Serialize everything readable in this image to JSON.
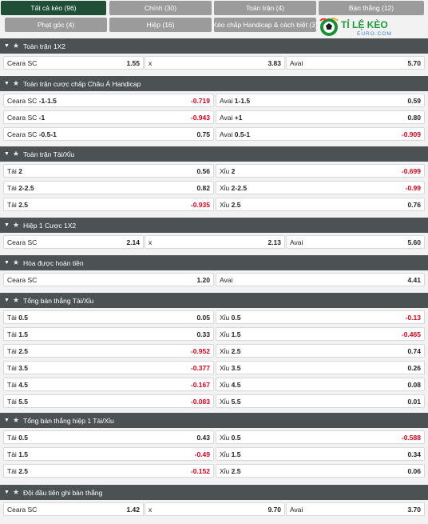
{
  "tabs": [
    {
      "label": "Tất cả kèo (96)",
      "active": true
    },
    {
      "label": "Chính (30)"
    },
    {
      "label": "Toàn trận (4)"
    },
    {
      "label": "Bàn thắng (12)"
    },
    {
      "label": "Phạt góc (4)"
    },
    {
      "label": "Hiệp (16)"
    },
    {
      "label": "Kèo chấp Handicap & cách biệt (3)"
    }
  ],
  "logo": {
    "text": "TỈ LỆ KÈO",
    "sub": "EURO.COM"
  },
  "sections": [
    {
      "title": "Toàn trận 1X2",
      "layout": "three",
      "rows": [
        [
          {
            "name": "Ceara SC",
            "odd": "1.55"
          },
          {
            "name": "x",
            "odd": "3.83"
          },
          {
            "name": "Avai",
            "odd": "5.70"
          }
        ]
      ]
    },
    {
      "title": "Toàn trận cược chấp Châu Á Handicap",
      "layout": "two",
      "rows": [
        [
          {
            "name": "Ceara SC",
            "line": "-1-1.5",
            "odd": "-0.719"
          },
          {
            "name": "Avai",
            "line": "1-1.5",
            "odd": "0.59"
          }
        ],
        [
          {
            "name": "Ceara SC",
            "line": "-1",
            "odd": "-0.943"
          },
          {
            "name": "Avai",
            "line": "+1",
            "odd": "0.80"
          }
        ],
        [
          {
            "name": "Ceara SC",
            "line": "-0.5-1",
            "odd": "0.75"
          },
          {
            "name": "Avai",
            "line": "0.5-1",
            "odd": "-0.909"
          }
        ]
      ]
    },
    {
      "title": "Toàn trận Tài/Xỉu",
      "layout": "two",
      "rows": [
        [
          {
            "name": "Tài",
            "line": "2",
            "odd": "0.56"
          },
          {
            "name": "Xỉu",
            "line": "2",
            "odd": "-0.699"
          }
        ],
        [
          {
            "name": "Tài",
            "line": "2-2.5",
            "odd": "0.82"
          },
          {
            "name": "Xỉu",
            "line": "2-2.5",
            "odd": "-0.99"
          }
        ],
        [
          {
            "name": "Tài",
            "line": "2.5",
            "odd": "-0.935"
          },
          {
            "name": "Xỉu",
            "line": "2.5",
            "odd": "0.76"
          }
        ]
      ]
    },
    {
      "title": "Hiệp 1 Cược 1X2",
      "layout": "three",
      "rows": [
        [
          {
            "name": "Ceara SC",
            "odd": "2.14"
          },
          {
            "name": "x",
            "odd": "2.13"
          },
          {
            "name": "Avai",
            "odd": "5.60"
          }
        ]
      ]
    },
    {
      "title": "Hòa được hoàn tiền",
      "layout": "two",
      "rows": [
        [
          {
            "name": "Ceara SC",
            "odd": "1.20"
          },
          {
            "name": "Avai",
            "odd": "4.41"
          }
        ]
      ]
    },
    {
      "title": "Tổng bàn thắng Tài/Xỉu",
      "layout": "two",
      "rows": [
        [
          {
            "name": "Tài",
            "line": "0.5",
            "odd": "0.05"
          },
          {
            "name": "Xỉu",
            "line": "0.5",
            "odd": "-0.13"
          }
        ],
        [
          {
            "name": "Tài",
            "line": "1.5",
            "odd": "0.33"
          },
          {
            "name": "Xỉu",
            "line": "1.5",
            "odd": "-0.465"
          }
        ],
        [
          {
            "name": "Tài",
            "line": "2.5",
            "odd": "-0.952"
          },
          {
            "name": "Xỉu",
            "line": "2.5",
            "odd": "0.74"
          }
        ],
        [
          {
            "name": "Tài",
            "line": "3.5",
            "odd": "-0.377"
          },
          {
            "name": "Xỉu",
            "line": "3.5",
            "odd": "0.26"
          }
        ],
        [
          {
            "name": "Tài",
            "line": "4.5",
            "odd": "-0.167"
          },
          {
            "name": "Xỉu",
            "line": "4.5",
            "odd": "0.08"
          }
        ],
        [
          {
            "name": "Tài",
            "line": "5.5",
            "odd": "-0.083"
          },
          {
            "name": "Xỉu",
            "line": "5.5",
            "odd": "0.01"
          }
        ]
      ]
    },
    {
      "title": "Tổng bàn thắng hiệp 1 Tài/Xỉu",
      "layout": "two",
      "rows": [
        [
          {
            "name": "Tài",
            "line": "0.5",
            "odd": "0.43"
          },
          {
            "name": "Xỉu",
            "line": "0.5",
            "odd": "-0.588"
          }
        ],
        [
          {
            "name": "Tài",
            "line": "1.5",
            "odd": "-0.49"
          },
          {
            "name": "Xỉu",
            "line": "1.5",
            "odd": "0.34"
          }
        ],
        [
          {
            "name": "Tài",
            "line": "2.5",
            "odd": "-0.152"
          },
          {
            "name": "Xỉu",
            "line": "2.5",
            "odd": "0.06"
          }
        ]
      ]
    },
    {
      "title": "Đội đầu tiên ghi bàn thắng",
      "layout": "three",
      "rows": [
        [
          {
            "name": "Ceara SC",
            "odd": "1.42"
          },
          {
            "name": "x",
            "odd": "9.70"
          },
          {
            "name": "Avai",
            "odd": "3.70"
          }
        ]
      ]
    }
  ],
  "colors": {
    "active_tab": "#1f4f36",
    "tab": "#9b9b9b",
    "header": "#4c5154",
    "negative": "#d0021b"
  },
  "icons": {
    "section_toggle": "caret-down-icon",
    "favorite": "star-icon"
  }
}
